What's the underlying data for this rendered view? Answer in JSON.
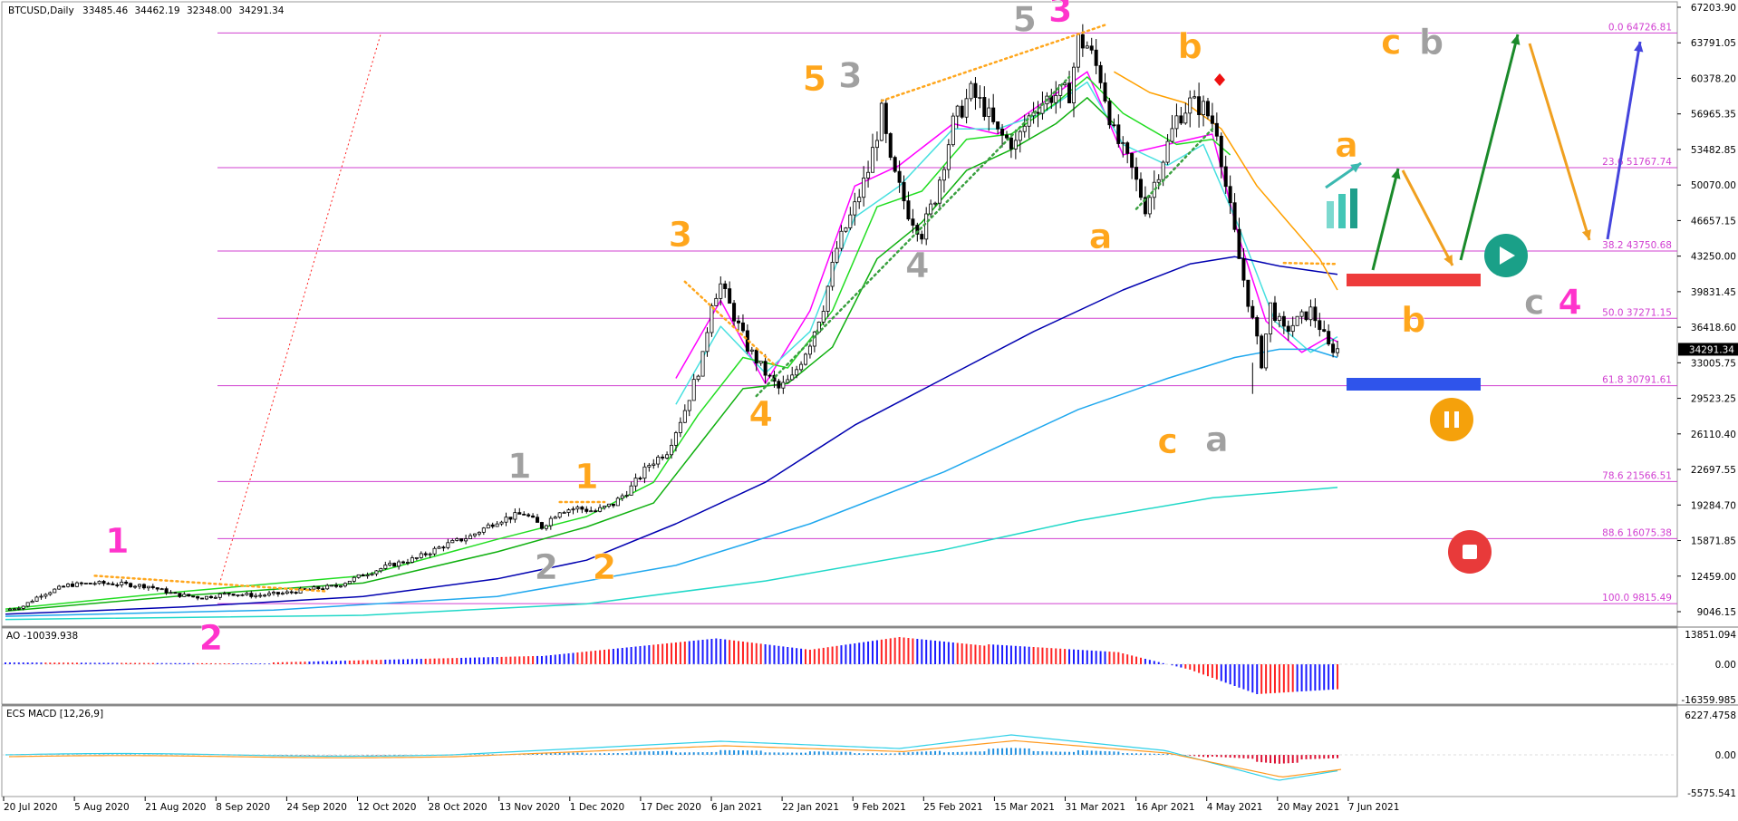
{
  "chart_data": {
    "type": "candlestick",
    "header": {
      "symbol": "BTCUSD,Daily",
      "open": "33485.46",
      "high": "34462.19",
      "low": "32348.00",
      "close": "34291.34"
    },
    "colors": {
      "candle_up": "#ffffff",
      "candle_down": "#000000",
      "ema_magenta": "#ff00ff",
      "ema_cyan_fast": "#48e0e0",
      "ema_green_1": "#22dd22",
      "ema_green_2": "#10b010",
      "ema_blue": "#0000b0",
      "ema_light_blue": "#20a8ee",
      "ema_teal": "#20d8c8",
      "ema_orange": "#ffa000",
      "fib": "#d040d0",
      "orange_wave": "#ffa61c",
      "grey_wave": "#a0a0a0",
      "pink_wave": "#ff33cc",
      "arrow_green": "#1a8a2a",
      "arrow_orange": "#f0a020",
      "arrow_blue": "#4444dd"
    },
    "price_axis": {
      "ticks": [
        "67203.90",
        "63791.05",
        "60378.20",
        "56965.35",
        "53482.85",
        "50070.00",
        "46657.15",
        "43250.00",
        "39831.45",
        "36418.60",
        "33005.75",
        "29523.25",
        "26110.40",
        "22697.55",
        "19284.70",
        "15871.85",
        "12459.00",
        "9046.15"
      ],
      "current": "34291.34"
    },
    "time_axis": [
      "20 Jul 2020",
      "5 Aug 2020",
      "21 Aug 2020",
      "8 Sep 2020",
      "24 Sep 2020",
      "12 Oct 2020",
      "28 Oct 2020",
      "13 Nov 2020",
      "1 Dec 2020",
      "17 Dec 2020",
      "6 Jan 2021",
      "22 Jan 2021",
      "9 Feb 2021",
      "25 Feb 2021",
      "15 Mar 2021",
      "31 Mar 2021",
      "16 Apr 2021",
      "4 May 2021",
      "20 May 2021",
      "7 Jun 2021"
    ],
    "fib_levels": [
      {
        "label": "0.0 64726.81",
        "price": 64726.81
      },
      {
        "label": "23.6 51767.74",
        "price": 51767.74
      },
      {
        "label": "38.2 43750.68",
        "price": 43750.68
      },
      {
        "label": "50.0 37271.15",
        "price": 37271.15
      },
      {
        "label": "61.8 30791.61",
        "price": 30791.61
      },
      {
        "label": "78.6 21566.51",
        "price": 21566.51
      },
      {
        "label": "88.6 16075.38",
        "price": 16075.38
      },
      {
        "label": "100.0 9815.49",
        "price": 9815.49
      }
    ],
    "price_path": [
      [
        0,
        9200
      ],
      [
        4,
        9600
      ],
      [
        8,
        10700
      ],
      [
        14,
        11600
      ],
      [
        20,
        11800
      ],
      [
        26,
        11700
      ],
      [
        32,
        11500
      ],
      [
        38,
        10700
      ],
      [
        44,
        10400
      ],
      [
        50,
        10800
      ],
      [
        56,
        10600
      ],
      [
        62,
        10800
      ],
      [
        68,
        11200
      ],
      [
        74,
        11500
      ],
      [
        80,
        12600
      ],
      [
        86,
        13500
      ],
      [
        92,
        14200
      ],
      [
        98,
        15400
      ],
      [
        104,
        16300
      ],
      [
        110,
        17800
      ],
      [
        116,
        18500
      ],
      [
        120,
        17200
      ],
      [
        124,
        18800
      ],
      [
        128,
        19000
      ],
      [
        132,
        18700
      ],
      [
        136,
        19400
      ],
      [
        140,
        21000
      ],
      [
        144,
        23200
      ],
      [
        148,
        24500
      ],
      [
        152,
        28500
      ],
      [
        156,
        33500
      ],
      [
        158,
        39000
      ],
      [
        160,
        40500
      ],
      [
        163,
        37500
      ],
      [
        166,
        34500
      ],
      [
        170,
        32000
      ],
      [
        173,
        30500
      ],
      [
        176,
        31500
      ],
      [
        180,
        35000
      ],
      [
        183,
        38500
      ],
      [
        186,
        44000
      ],
      [
        190,
        48000
      ],
      [
        193,
        51500
      ],
      [
        196,
        57000
      ],
      [
        198,
        52000
      ],
      [
        202,
        47500
      ],
      [
        205,
        45500
      ],
      [
        208,
        49000
      ],
      [
        212,
        56000
      ],
      [
        216,
        59000
      ],
      [
        219,
        57500
      ],
      [
        222,
        55000
      ],
      [
        226,
        54000
      ],
      [
        230,
        57500
      ],
      [
        234,
        58700
      ],
      [
        238,
        59000
      ],
      [
        240,
        64000
      ],
      [
        242,
        63500
      ],
      [
        245,
        60500
      ],
      [
        248,
        55000
      ],
      [
        252,
        51500
      ],
      [
        255,
        48000
      ],
      [
        258,
        51500
      ],
      [
        262,
        56500
      ],
      [
        265,
        58000
      ],
      [
        268,
        57500
      ],
      [
        271,
        55500
      ],
      [
        273,
        50000
      ],
      [
        276,
        43000
      ],
      [
        279,
        37000
      ],
      [
        281,
        33000
      ],
      [
        283,
        38500
      ],
      [
        286,
        36000
      ],
      [
        289,
        37000
      ],
      [
        292,
        38000
      ],
      [
        294,
        36500
      ],
      [
        296,
        34500
      ],
      [
        298,
        34291
      ]
    ],
    "moving_averages": [
      {
        "color": "#ff00ff",
        "points": [
          [
            150,
            31500
          ],
          [
            160,
            39000
          ],
          [
            170,
            31000
          ],
          [
            180,
            38000
          ],
          [
            190,
            50000
          ],
          [
            200,
            52000
          ],
          [
            212,
            56000
          ],
          [
            222,
            55000
          ],
          [
            232,
            58000
          ],
          [
            242,
            61000
          ],
          [
            250,
            53000
          ],
          [
            260,
            54000
          ],
          [
            270,
            55000
          ],
          [
            276,
            45000
          ],
          [
            282,
            37000
          ],
          [
            290,
            34000
          ],
          [
            296,
            35500
          ],
          [
            298,
            35000
          ]
        ]
      },
      {
        "color": "#48e0e0",
        "points": [
          [
            150,
            29000
          ],
          [
            160,
            36500
          ],
          [
            170,
            32000
          ],
          [
            180,
            36000
          ],
          [
            190,
            47000
          ],
          [
            200,
            50000
          ],
          [
            212,
            55500
          ],
          [
            222,
            55500
          ],
          [
            232,
            57000
          ],
          [
            242,
            60000
          ],
          [
            250,
            54000
          ],
          [
            260,
            52000
          ],
          [
            268,
            54000
          ],
          [
            276,
            46000
          ],
          [
            284,
            37000
          ],
          [
            292,
            34000
          ],
          [
            298,
            35500
          ]
        ]
      },
      {
        "color": "#22dd22",
        "points": [
          [
            0,
            9300
          ],
          [
            40,
            11000
          ],
          [
            80,
            12500
          ],
          [
            110,
            16000
          ],
          [
            130,
            18200
          ],
          [
            145,
            21500
          ],
          [
            155,
            28000
          ],
          [
            165,
            33500
          ],
          [
            175,
            32500
          ],
          [
            185,
            38000
          ],
          [
            195,
            48000
          ],
          [
            205,
            49500
          ],
          [
            215,
            54500
          ],
          [
            225,
            55000
          ],
          [
            235,
            58000
          ],
          [
            242,
            60500
          ],
          [
            250,
            57000
          ],
          [
            262,
            54000
          ],
          [
            270,
            54500
          ],
          [
            274,
            53000
          ]
        ]
      },
      {
        "color": "#10b010",
        "points": [
          [
            0,
            9100
          ],
          [
            40,
            10600
          ],
          [
            80,
            11800
          ],
          [
            110,
            14800
          ],
          [
            130,
            17200
          ],
          [
            145,
            19500
          ],
          [
            155,
            25000
          ],
          [
            165,
            30500
          ],
          [
            175,
            31000
          ],
          [
            185,
            34500
          ],
          [
            195,
            43000
          ],
          [
            205,
            46500
          ],
          [
            215,
            51500
          ],
          [
            225,
            53500
          ],
          [
            235,
            56000
          ],
          [
            242,
            58500
          ],
          [
            248,
            56000
          ]
        ]
      },
      {
        "color": "#0000b0",
        "points": [
          [
            0,
            8800
          ],
          [
            40,
            9500
          ],
          [
            80,
            10500
          ],
          [
            110,
            12200
          ],
          [
            130,
            14000
          ],
          [
            150,
            17500
          ],
          [
            170,
            21500
          ],
          [
            190,
            27000
          ],
          [
            210,
            31500
          ],
          [
            230,
            36000
          ],
          [
            250,
            40000
          ],
          [
            265,
            42500
          ],
          [
            275,
            43200
          ],
          [
            285,
            42300
          ],
          [
            298,
            41500
          ]
        ]
      },
      {
        "color": "#20a8ee",
        "points": [
          [
            0,
            8600
          ],
          [
            60,
            9200
          ],
          [
            110,
            10500
          ],
          [
            150,
            13500
          ],
          [
            180,
            17500
          ],
          [
            210,
            22500
          ],
          [
            240,
            28500
          ],
          [
            260,
            31500
          ],
          [
            275,
            33500
          ],
          [
            285,
            34300
          ],
          [
            292,
            34300
          ],
          [
            298,
            33500
          ]
        ]
      },
      {
        "color": "#20d8c8",
        "points": [
          [
            0,
            8300
          ],
          [
            80,
            8700
          ],
          [
            130,
            9800
          ],
          [
            170,
            12000
          ],
          [
            210,
            15000
          ],
          [
            240,
            17800
          ],
          [
            270,
            20000
          ],
          [
            298,
            21000
          ]
        ]
      },
      {
        "color": "#ffa000",
        "points": [
          [
            248,
            61000
          ],
          [
            256,
            59000
          ],
          [
            264,
            58000
          ],
          [
            272,
            55500
          ],
          [
            280,
            50000
          ],
          [
            288,
            46000
          ],
          [
            294,
            43000
          ],
          [
            298,
            40000
          ]
        ]
      }
    ],
    "wave_labels": [
      {
        "text": "1",
        "color": "#ff33cc",
        "bar": 25,
        "price": 14700
      },
      {
        "text": "2",
        "color": "#ff33cc",
        "bar": 46,
        "price": 5400
      },
      {
        "text": "1",
        "color": "#a0a0a0",
        "bar": 115,
        "price": 21900
      },
      {
        "text": "1",
        "color": "#ffa61c",
        "bar": 130,
        "price": 20900
      },
      {
        "text": "2",
        "color": "#a0a0a0",
        "bar": 121,
        "price": 12200
      },
      {
        "text": "2",
        "color": "#ffa61c",
        "bar": 134,
        "price": 12200
      },
      {
        "text": "3",
        "color": "#ffa61c",
        "bar": 151,
        "price": 44200
      },
      {
        "text": "4",
        "color": "#ffa61c",
        "bar": 169,
        "price": 26900
      },
      {
        "text": "5",
        "color": "#ffa61c",
        "bar": 181,
        "price": 59200
      },
      {
        "text": "3",
        "color": "#a0a0a0",
        "bar": 189,
        "price": 59500
      },
      {
        "text": "4",
        "color": "#a0a0a0",
        "bar": 204,
        "price": 41200
      },
      {
        "text": "5",
        "color": "#a0a0a0",
        "bar": 228,
        "price": 64900
      },
      {
        "text": "3",
        "color": "#ff33cc",
        "bar": 236,
        "price": 65800
      },
      {
        "text": "b",
        "color": "#ffa61c",
        "bar": 265,
        "price": 62300
      },
      {
        "text": "a",
        "color": "#ffa61c",
        "bar": 245,
        "price": 44000
      },
      {
        "text": "c",
        "color": "#ffa61c",
        "bar": 260,
        "price": 24300
      },
      {
        "text": "a",
        "color": "#a0a0a0",
        "bar": 271,
        "price": 24500
      },
      {
        "text": "a",
        "color": "#ffa61c",
        "bar": 300,
        "price": 52800
      },
      {
        "text": "b",
        "color": "#ffa61c",
        "bar": 315,
        "price": 36000
      },
      {
        "text": "c",
        "color": "#ffa61c",
        "bar": 310,
        "price": 62700
      },
      {
        "text": "b",
        "color": "#a0a0a0",
        "bar": 319,
        "price": 62700
      },
      {
        "text": "c",
        "color": "#a0a0a0",
        "bar": 342,
        "price": 37700
      },
      {
        "text": "4",
        "color": "#ff33cc",
        "bar": 350,
        "price": 37700
      }
    ],
    "oscillators": [
      {
        "name": "AO",
        "label": "AO -10039.938",
        "ticks": [
          "13851.094",
          "0.00",
          "-16359.985"
        ]
      },
      {
        "name": "ECS MACD",
        "label": "ECS MACD [12,26,9]",
        "ticks": [
          "6227.4758",
          "0.00",
          "-5575.541"
        ]
      }
    ]
  }
}
